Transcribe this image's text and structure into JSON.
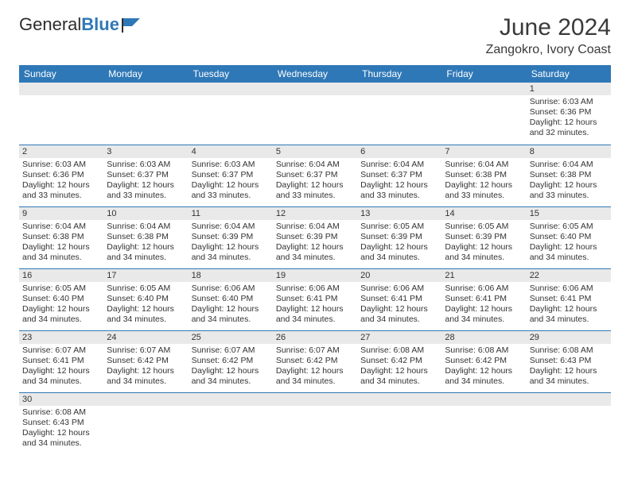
{
  "logo": {
    "text1": "General",
    "text2": "Blue"
  },
  "title": "June 2024",
  "location": "Zangokro, Ivory Coast",
  "colors": {
    "header_bg": "#2f78b7",
    "header_text": "#ffffff",
    "daynum_bg": "#e9e9e9",
    "border": "#2f78b7",
    "text": "#333333",
    "page_bg": "#ffffff"
  },
  "weekdays": [
    "Sunday",
    "Monday",
    "Tuesday",
    "Wednesday",
    "Thursday",
    "Friday",
    "Saturday"
  ],
  "first_weekday_index": 6,
  "days": [
    {
      "n": 1,
      "sunrise": "6:03 AM",
      "sunset": "6:36 PM",
      "daylight": "12 hours and 32 minutes."
    },
    {
      "n": 2,
      "sunrise": "6:03 AM",
      "sunset": "6:36 PM",
      "daylight": "12 hours and 33 minutes."
    },
    {
      "n": 3,
      "sunrise": "6:03 AM",
      "sunset": "6:37 PM",
      "daylight": "12 hours and 33 minutes."
    },
    {
      "n": 4,
      "sunrise": "6:03 AM",
      "sunset": "6:37 PM",
      "daylight": "12 hours and 33 minutes."
    },
    {
      "n": 5,
      "sunrise": "6:04 AM",
      "sunset": "6:37 PM",
      "daylight": "12 hours and 33 minutes."
    },
    {
      "n": 6,
      "sunrise": "6:04 AM",
      "sunset": "6:37 PM",
      "daylight": "12 hours and 33 minutes."
    },
    {
      "n": 7,
      "sunrise": "6:04 AM",
      "sunset": "6:38 PM",
      "daylight": "12 hours and 33 minutes."
    },
    {
      "n": 8,
      "sunrise": "6:04 AM",
      "sunset": "6:38 PM",
      "daylight": "12 hours and 33 minutes."
    },
    {
      "n": 9,
      "sunrise": "6:04 AM",
      "sunset": "6:38 PM",
      "daylight": "12 hours and 34 minutes."
    },
    {
      "n": 10,
      "sunrise": "6:04 AM",
      "sunset": "6:38 PM",
      "daylight": "12 hours and 34 minutes."
    },
    {
      "n": 11,
      "sunrise": "6:04 AM",
      "sunset": "6:39 PM",
      "daylight": "12 hours and 34 minutes."
    },
    {
      "n": 12,
      "sunrise": "6:04 AM",
      "sunset": "6:39 PM",
      "daylight": "12 hours and 34 minutes."
    },
    {
      "n": 13,
      "sunrise": "6:05 AM",
      "sunset": "6:39 PM",
      "daylight": "12 hours and 34 minutes."
    },
    {
      "n": 14,
      "sunrise": "6:05 AM",
      "sunset": "6:39 PM",
      "daylight": "12 hours and 34 minutes."
    },
    {
      "n": 15,
      "sunrise": "6:05 AM",
      "sunset": "6:40 PM",
      "daylight": "12 hours and 34 minutes."
    },
    {
      "n": 16,
      "sunrise": "6:05 AM",
      "sunset": "6:40 PM",
      "daylight": "12 hours and 34 minutes."
    },
    {
      "n": 17,
      "sunrise": "6:05 AM",
      "sunset": "6:40 PM",
      "daylight": "12 hours and 34 minutes."
    },
    {
      "n": 18,
      "sunrise": "6:06 AM",
      "sunset": "6:40 PM",
      "daylight": "12 hours and 34 minutes."
    },
    {
      "n": 19,
      "sunrise": "6:06 AM",
      "sunset": "6:41 PM",
      "daylight": "12 hours and 34 minutes."
    },
    {
      "n": 20,
      "sunrise": "6:06 AM",
      "sunset": "6:41 PM",
      "daylight": "12 hours and 34 minutes."
    },
    {
      "n": 21,
      "sunrise": "6:06 AM",
      "sunset": "6:41 PM",
      "daylight": "12 hours and 34 minutes."
    },
    {
      "n": 22,
      "sunrise": "6:06 AM",
      "sunset": "6:41 PM",
      "daylight": "12 hours and 34 minutes."
    },
    {
      "n": 23,
      "sunrise": "6:07 AM",
      "sunset": "6:41 PM",
      "daylight": "12 hours and 34 minutes."
    },
    {
      "n": 24,
      "sunrise": "6:07 AM",
      "sunset": "6:42 PM",
      "daylight": "12 hours and 34 minutes."
    },
    {
      "n": 25,
      "sunrise": "6:07 AM",
      "sunset": "6:42 PM",
      "daylight": "12 hours and 34 minutes."
    },
    {
      "n": 26,
      "sunrise": "6:07 AM",
      "sunset": "6:42 PM",
      "daylight": "12 hours and 34 minutes."
    },
    {
      "n": 27,
      "sunrise": "6:08 AM",
      "sunset": "6:42 PM",
      "daylight": "12 hours and 34 minutes."
    },
    {
      "n": 28,
      "sunrise": "6:08 AM",
      "sunset": "6:42 PM",
      "daylight": "12 hours and 34 minutes."
    },
    {
      "n": 29,
      "sunrise": "6:08 AM",
      "sunset": "6:43 PM",
      "daylight": "12 hours and 34 minutes."
    },
    {
      "n": 30,
      "sunrise": "6:08 AM",
      "sunset": "6:43 PM",
      "daylight": "12 hours and 34 minutes."
    }
  ],
  "labels": {
    "sunrise": "Sunrise:",
    "sunset": "Sunset:",
    "daylight": "Daylight:"
  }
}
